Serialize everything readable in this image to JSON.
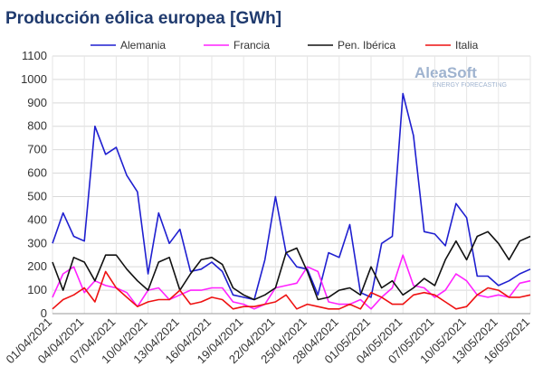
{
  "chart_data": {
    "type": "line",
    "title": "Producción eólica europea [GWh]",
    "logo": {
      "name": "AleaSoft",
      "tagline": "ENERGY FORECASTING"
    },
    "categories": [
      "01/04/2021",
      null,
      null,
      "04/04/2021",
      null,
      null,
      "07/04/2021",
      null,
      null,
      "10/04/2021",
      null,
      null,
      "13/04/2021",
      null,
      null,
      "16/04/2021",
      null,
      null,
      "19/04/2021",
      null,
      null,
      "22/04/2021",
      null,
      null,
      "25/04/2021",
      null,
      null,
      "28/04/2021",
      null,
      null,
      "01/05/2021",
      null,
      null,
      "04/05/2021",
      null,
      null,
      "07/05/2021",
      null,
      null,
      "10/05/2021",
      null,
      null,
      "13/05/2021",
      null,
      null,
      "16/05/2021"
    ],
    "series": [
      {
        "name": "Alemania",
        "color": "#1f1fd0",
        "values": [
          300,
          430,
          330,
          310,
          800,
          680,
          710,
          590,
          520,
          170,
          430,
          300,
          360,
          180,
          190,
          220,
          180,
          80,
          70,
          60,
          230,
          500,
          260,
          200,
          190,
          80,
          260,
          240,
          380,
          90,
          70,
          300,
          330,
          940,
          760,
          350,
          340,
          290,
          470,
          410,
          160,
          160,
          120,
          140,
          170,
          190
        ]
      },
      {
        "name": "Francia",
        "color": "#ff22ff",
        "values": [
          70,
          170,
          200,
          90,
          140,
          120,
          110,
          90,
          30,
          100,
          110,
          60,
          80,
          100,
          100,
          110,
          110,
          50,
          40,
          20,
          40,
          110,
          120,
          130,
          200,
          180,
          50,
          40,
          40,
          60,
          20,
          70,
          110,
          250,
          120,
          110,
          70,
          100,
          170,
          140,
          80,
          70,
          80,
          70,
          130,
          140
        ]
      },
      {
        "name": "Pen. Ibérica",
        "color": "#111111",
        "values": [
          220,
          100,
          240,
          220,
          140,
          250,
          250,
          190,
          140,
          100,
          220,
          240,
          100,
          170,
          230,
          240,
          210,
          110,
          80,
          60,
          80,
          110,
          260,
          280,
          180,
          60,
          70,
          100,
          110,
          80,
          200,
          110,
          140,
          80,
          110,
          150,
          120,
          230,
          310,
          230,
          330,
          350,
          300,
          230,
          310,
          330
        ]
      },
      {
        "name": "Italia",
        "color": "#ee1111",
        "values": [
          20,
          60,
          80,
          110,
          50,
          180,
          110,
          70,
          30,
          50,
          60,
          60,
          100,
          40,
          50,
          70,
          60,
          20,
          30,
          30,
          40,
          50,
          80,
          20,
          40,
          30,
          20,
          20,
          40,
          20,
          90,
          70,
          40,
          40,
          80,
          90,
          80,
          50,
          20,
          30,
          80,
          110,
          100,
          70,
          70,
          80
        ]
      }
    ],
    "ylim": [
      0,
      1100
    ],
    "yticks": [
      0,
      100,
      200,
      300,
      400,
      500,
      600,
      700,
      800,
      900,
      1000,
      1100
    ],
    "grid": true,
    "legend": "top"
  }
}
